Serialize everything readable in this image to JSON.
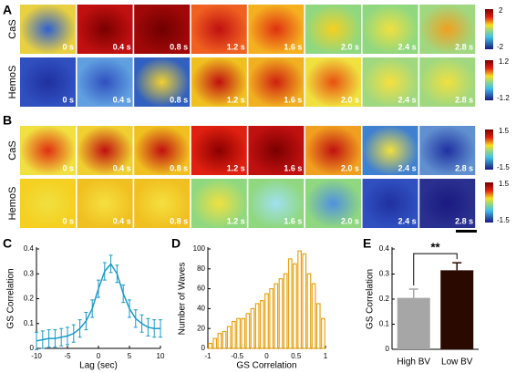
{
  "panel_a": {
    "label": "A",
    "rows": [
      {
        "label": "CaS",
        "times": [
          "0 s",
          "0.4 s",
          "0.8 s",
          "1.2 s",
          "1.6 s",
          "2.0 s",
          "2.4 s",
          "2.8 s"
        ],
        "colorbar": [
          2,
          -2
        ]
      },
      {
        "label": "HemoS",
        "times": [
          "0 s",
          "0.4 s",
          "0.8 s",
          "1.2 s",
          "1.6 s",
          "2.0 s",
          "2.4 s",
          "2.8 s"
        ],
        "colorbar": [
          1.2,
          -1.2
        ]
      }
    ]
  },
  "panel_b": {
    "label": "B",
    "rows": [
      {
        "label": "CaS",
        "times": [
          "0 s",
          "0.4 s",
          "0.8 s",
          "1.2 s",
          "1.6 s",
          "2.0 s",
          "2.4 s",
          "2.8 s"
        ],
        "colorbar": [
          1.5,
          -1.5
        ]
      },
      {
        "label": "HemoS",
        "times": [
          "0 s",
          "0.4 s",
          "0.8 s",
          "1.2 s",
          "1.6 s",
          "2.0 s",
          "2.4 s",
          "2.8 s"
        ],
        "colorbar": [
          1.5,
          -1.5
        ]
      }
    ]
  },
  "chart_data": [
    {
      "type": "line",
      "panel": "C",
      "xlabel": "Lag (sec)",
      "ylabel": "GS Correlation",
      "color": "#1a9bc9",
      "x": [
        -10,
        -9,
        -8,
        -7,
        -6,
        -5,
        -4,
        -3,
        -2,
        -1,
        0,
        1,
        2,
        3,
        4,
        5,
        6,
        7,
        8,
        9,
        10
      ],
      "values": [
        0.03,
        0.035,
        0.04,
        0.04,
        0.045,
        0.05,
        0.06,
        0.08,
        0.11,
        0.16,
        0.24,
        0.31,
        0.34,
        0.3,
        0.22,
        0.16,
        0.12,
        0.1,
        0.085,
        0.08,
        0.08
      ],
      "errors": [
        0.035,
        0.035,
        0.035,
        0.035,
        0.035,
        0.035,
        0.035,
        0.035,
        0.035,
        0.035,
        0.035,
        0.035,
        0.035,
        0.035,
        0.035,
        0.035,
        0.035,
        0.035,
        0.035,
        0.035,
        0.035
      ],
      "xlim": [
        -10,
        10
      ],
      "xticks": [
        -10,
        -5,
        0,
        5,
        10
      ],
      "ylim": [
        0,
        0.4
      ],
      "yticks": [
        0,
        0.1,
        0.2,
        0.3,
        0.4
      ]
    },
    {
      "type": "histogram",
      "panel": "D",
      "xlabel": "GS Correlation",
      "ylabel": "Number of Waves",
      "color": "#e8a317",
      "bins": [
        -1,
        -0.92,
        -0.84,
        -0.76,
        -0.68,
        -0.6,
        -0.52,
        -0.44,
        -0.36,
        -0.28,
        -0.2,
        -0.12,
        -0.04,
        0.04,
        0.12,
        0.2,
        0.28,
        0.36,
        0.44,
        0.52,
        0.6,
        0.68,
        0.76,
        0.84,
        0.92,
        1
      ],
      "values": [
        5,
        10,
        15,
        17,
        22,
        27,
        30,
        30,
        35,
        40,
        45,
        48,
        55,
        60,
        65,
        70,
        75,
        90,
        85,
        98,
        95,
        75,
        65,
        45,
        30
      ],
      "xlim": [
        -1,
        1
      ],
      "xticks": [
        -1,
        -0.5,
        0,
        0.5,
        1
      ],
      "ylim": [
        0,
        100
      ],
      "yticks": [
        0,
        20,
        40,
        60,
        80,
        100
      ]
    },
    {
      "type": "bar",
      "panel": "E",
      "ylabel": "GS Correlation",
      "categories": [
        "High BV",
        "Low BV"
      ],
      "values": [
        0.205,
        0.315
      ],
      "errors": [
        0.035,
        0.03
      ],
      "colors": [
        "#a6a6a6",
        "#2a0a00"
      ],
      "annotation": "**",
      "ylim": [
        0,
        0.4
      ],
      "yticks": [
        0,
        0.1,
        0.2,
        0.3,
        0.4
      ]
    }
  ]
}
